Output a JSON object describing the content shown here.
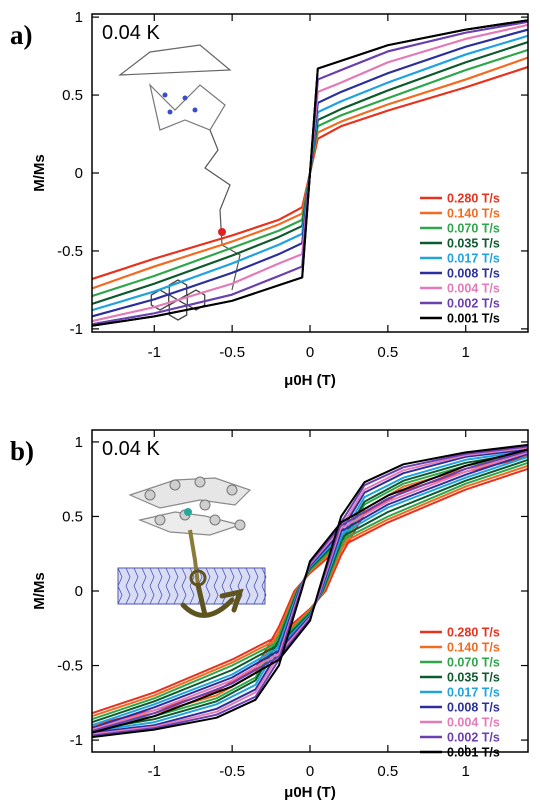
{
  "chart_data": [
    {
      "type": "line",
      "panel": "a)",
      "annotation": "0.04 K",
      "xlabel": "μ0H (T)",
      "ylabel": "M/Ms",
      "xlim": [
        -1.4,
        1.4
      ],
      "ylim": [
        -1.02,
        1.02
      ],
      "xticks": [
        -1,
        -0.5,
        0,
        0.5,
        1
      ],
      "xtick_labels": [
        "-1",
        "-0.5",
        "0",
        "0.5",
        "1"
      ],
      "yticks": [
        -1,
        -0.5,
        0,
        0.5,
        1
      ],
      "ytick_labels": [
        "-1",
        "-0.5",
        "0",
        "0.5",
        "1"
      ],
      "grid": false,
      "legend_position": "bottom-right",
      "inset": "molecular structure (single molecule magnet with pyrene group)",
      "series": [
        {
          "name": "0.280 T/s",
          "color": "#e8321e",
          "x": [
            -1.4,
            -1.0,
            -0.5,
            -0.2,
            -0.05,
            0.0,
            0.05,
            0.2,
            0.5,
            1.0,
            1.4
          ],
          "y": [
            -0.68,
            -0.55,
            -0.4,
            -0.3,
            -0.22,
            0.0,
            0.22,
            0.3,
            0.4,
            0.55,
            0.68
          ]
        },
        {
          "name": "0.140 T/s",
          "color": "#f26b21",
          "x": [
            -1.4,
            -1.0,
            -0.5,
            -0.2,
            -0.05,
            0.0,
            0.05,
            0.2,
            0.5,
            1.0,
            1.4
          ],
          "y": [
            -0.74,
            -0.6,
            -0.44,
            -0.33,
            -0.26,
            0.0,
            0.26,
            0.33,
            0.44,
            0.6,
            0.74
          ]
        },
        {
          "name": "0.070 T/s",
          "color": "#2ea64a",
          "x": [
            -1.4,
            -1.0,
            -0.5,
            -0.2,
            -0.05,
            0.0,
            0.05,
            0.2,
            0.5,
            1.0,
            1.4
          ],
          "y": [
            -0.79,
            -0.66,
            -0.48,
            -0.37,
            -0.3,
            0.0,
            0.3,
            0.37,
            0.48,
            0.66,
            0.79
          ]
        },
        {
          "name": "0.035 T/s",
          "color": "#0d5a2c",
          "x": [
            -1.4,
            -1.0,
            -0.5,
            -0.2,
            -0.05,
            0.0,
            0.05,
            0.2,
            0.5,
            1.0,
            1.4
          ],
          "y": [
            -0.84,
            -0.71,
            -0.53,
            -0.41,
            -0.34,
            0.0,
            0.34,
            0.41,
            0.53,
            0.71,
            0.84
          ]
        },
        {
          "name": "0.017 T/s",
          "color": "#1fa3e0",
          "x": [
            -1.4,
            -1.0,
            -0.5,
            -0.2,
            -0.05,
            0.0,
            0.05,
            0.2,
            0.5,
            1.0,
            1.4
          ],
          "y": [
            -0.88,
            -0.76,
            -0.58,
            -0.46,
            -0.39,
            0.0,
            0.39,
            0.46,
            0.58,
            0.76,
            0.88
          ]
        },
        {
          "name": "0.008 T/s",
          "color": "#2b2f9e",
          "x": [
            -1.4,
            -1.0,
            -0.5,
            -0.2,
            -0.05,
            0.0,
            0.05,
            0.2,
            0.5,
            1.0,
            1.4
          ],
          "y": [
            -0.92,
            -0.81,
            -0.64,
            -0.52,
            -0.45,
            0.0,
            0.45,
            0.52,
            0.64,
            0.81,
            0.92
          ]
        },
        {
          "name": "0.004 T/s",
          "color": "#e57ab8",
          "x": [
            -1.4,
            -1.0,
            -0.5,
            -0.2,
            -0.05,
            0.0,
            0.05,
            0.2,
            0.5,
            1.0,
            1.4
          ],
          "y": [
            -0.95,
            -0.86,
            -0.71,
            -0.58,
            -0.52,
            0.0,
            0.52,
            0.58,
            0.71,
            0.86,
            0.95
          ]
        },
        {
          "name": "0.002 T/s",
          "color": "#6a3fb0",
          "x": [
            -1.4,
            -1.0,
            -0.5,
            -0.2,
            -0.05,
            0.0,
            0.05,
            0.2,
            0.5,
            1.0,
            1.4
          ],
          "y": [
            -0.97,
            -0.9,
            -0.78,
            -0.66,
            -0.6,
            0.0,
            0.6,
            0.66,
            0.78,
            0.9,
            0.97
          ]
        },
        {
          "name": "0.001 T/s",
          "color": "#000000",
          "x": [
            -1.4,
            -1.0,
            -0.5,
            -0.2,
            -0.05,
            0.0,
            0.05,
            0.2,
            0.5,
            1.0,
            1.4
          ],
          "y": [
            -0.98,
            -0.92,
            -0.82,
            -0.72,
            -0.67,
            0.0,
            0.67,
            0.72,
            0.82,
            0.92,
            0.98
          ]
        }
      ]
    },
    {
      "type": "line",
      "panel": "b)",
      "annotation": "0.04 K",
      "xlabel": "μ0H (T)",
      "ylabel": "M/Ms",
      "xlim": [
        -1.4,
        1.4
      ],
      "ylim": [
        -1.08,
        1.08
      ],
      "xticks": [
        -1,
        -0.5,
        0,
        0.5,
        1
      ],
      "xtick_labels": [
        "-1",
        "-0.5",
        "0",
        "0.5",
        "1"
      ],
      "yticks": [
        -1,
        -0.5,
        0,
        0.5,
        1
      ],
      "ytick_labels": [
        "-1",
        "-0.5",
        "0",
        "0.5",
        "1"
      ],
      "grid": false,
      "legend_position": "bottom-right",
      "inset": "molecule anchored on carbon nanotube",
      "series": [
        {
          "name": "0.280 T/s",
          "color": "#e8321e",
          "x": [
            -1.4,
            -1.0,
            -0.5,
            -0.2,
            0.0,
            0.1,
            0.2,
            0.35,
            0.6,
            1.0,
            1.4
          ],
          "y": [
            -0.82,
            -0.68,
            -0.46,
            -0.3,
            -0.12,
            0.0,
            0.24,
            0.52,
            0.67,
            0.8,
            0.9
          ]
        },
        {
          "name": "0.140 T/s",
          "color": "#f26b21",
          "x": [
            -1.4,
            -1.0,
            -0.5,
            -0.2,
            0.0,
            0.09,
            0.2,
            0.35,
            0.6,
            1.0,
            1.4
          ],
          "y": [
            -0.84,
            -0.7,
            -0.48,
            -0.32,
            -0.13,
            0.0,
            0.27,
            0.55,
            0.7,
            0.82,
            0.91
          ]
        },
        {
          "name": "0.070 T/s",
          "color": "#2ea64a",
          "x": [
            -1.4,
            -1.0,
            -0.5,
            -0.2,
            0.0,
            0.085,
            0.2,
            0.35,
            0.6,
            1.0,
            1.4
          ],
          "y": [
            -0.86,
            -0.72,
            -0.5,
            -0.34,
            -0.14,
            0.0,
            0.3,
            0.58,
            0.72,
            0.84,
            0.92
          ]
        },
        {
          "name": "0.035 T/s",
          "color": "#0d5a2c",
          "x": [
            -1.4,
            -1.0,
            -0.5,
            -0.2,
            0.0,
            0.08,
            0.2,
            0.35,
            0.6,
            1.0,
            1.4
          ],
          "y": [
            -0.88,
            -0.74,
            -0.53,
            -0.36,
            -0.15,
            0.0,
            0.33,
            0.6,
            0.74,
            0.86,
            0.93
          ]
        },
        {
          "name": "0.017 T/s",
          "color": "#1fa3e0",
          "x": [
            -1.4,
            -1.0,
            -0.5,
            -0.2,
            0.0,
            0.075,
            0.2,
            0.35,
            0.6,
            1.0,
            1.4
          ],
          "y": [
            -0.9,
            -0.76,
            -0.56,
            -0.38,
            -0.16,
            0.0,
            0.36,
            0.63,
            0.76,
            0.88,
            0.94
          ]
        },
        {
          "name": "0.008 T/s",
          "color": "#2b2f9e",
          "x": [
            -1.4,
            -1.0,
            -0.5,
            -0.2,
            0.0,
            0.07,
            0.2,
            0.35,
            0.6,
            1.0,
            1.4
          ],
          "y": [
            -0.92,
            -0.78,
            -0.58,
            -0.4,
            -0.17,
            0.0,
            0.4,
            0.66,
            0.79,
            0.9,
            0.95
          ]
        },
        {
          "name": "0.004 T/s",
          "color": "#e57ab8",
          "x": [
            -1.4,
            -1.0,
            -0.5,
            -0.2,
            0.0,
            0.065,
            0.2,
            0.35,
            0.6,
            1.0,
            1.4
          ],
          "y": [
            -0.93,
            -0.8,
            -0.6,
            -0.42,
            -0.18,
            0.0,
            0.43,
            0.68,
            0.81,
            0.91,
            0.96
          ]
        },
        {
          "name": "0.002 T/s",
          "color": "#6a3fb0",
          "x": [
            -1.4,
            -1.0,
            -0.5,
            -0.2,
            0.0,
            0.06,
            0.2,
            0.35,
            0.6,
            1.0,
            1.4
          ],
          "y": [
            -0.94,
            -0.82,
            -0.62,
            -0.44,
            -0.19,
            0.0,
            0.46,
            0.71,
            0.83,
            0.92,
            0.97
          ]
        },
        {
          "name": "0.001 T/s",
          "color": "#000000",
          "x": [
            -1.4,
            -1.0,
            -0.5,
            -0.2,
            0.0,
            0.055,
            0.2,
            0.35,
            0.6,
            1.0,
            1.4
          ],
          "y": [
            -0.95,
            -0.84,
            -0.64,
            -0.46,
            -0.2,
            0.0,
            0.5,
            0.73,
            0.85,
            0.93,
            0.98
          ]
        }
      ]
    }
  ]
}
